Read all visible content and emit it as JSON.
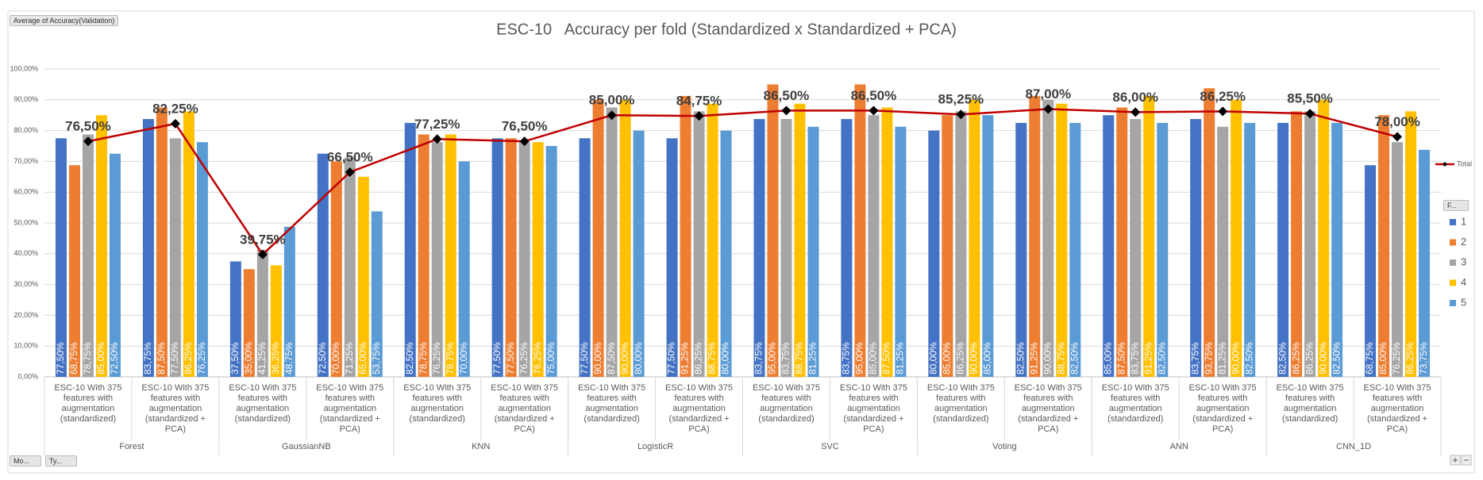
{
  "ui": {
    "field_button": "Average of Accuracy(Validation)",
    "legend_filter": "F...",
    "axis_buttons": [
      "Mo...",
      "Ty..."
    ]
  },
  "chart_data": {
    "type": "bar",
    "title": "ESC-10   Accuracy per fold (Standardized x Standardized + PCA)",
    "categories": [
      "ESC-10 With 375 features with augmentation (standardized)",
      "ESC-10 With 375 features with augmentation (standardized + PCA)",
      "ESC-10 With 375 features with augmentation (standardized)",
      "ESC-10 With 375 features with augmentation (standardized + PCA)",
      "ESC-10 With 375 features with augmentation (standardized)",
      "ESC-10 With 375 features with augmentation (standardized + PCA)",
      "ESC-10 With 375 features with augmentation (standardized)",
      "ESC-10 With 375 features with augmentation (standardized + PCA)",
      "ESC-10 With 375 features with augmentation (standardized)",
      "ESC-10 With 375 features with augmentation (standardized + PCA)",
      "ESC-10 With 375 features with augmentation (standardized)",
      "ESC-10 With 375 features with augmentation (standardized + PCA)",
      "ESC-10 With 375 features with augmentation (standardized)",
      "ESC-10 With 375 features with augmentation (standardized + PCA)",
      "ESC-10 With 375 features with augmentation (standardized)",
      "ESC-10 With 375 features with augmentation (standardized + PCA)"
    ],
    "groups": [
      "Forest",
      "GaussianNB",
      "KNN",
      "LogisticR",
      "SVC",
      "Voting",
      "ANN",
      "CNN_1D"
    ],
    "ylim": [
      0,
      100
    ],
    "yticks": [
      {
        "value": 0,
        "label": "0,00%"
      },
      {
        "value": 10,
        "label": "10,00%"
      },
      {
        "value": 20,
        "label": "20,00%"
      },
      {
        "value": 30,
        "label": "30,00%"
      },
      {
        "value": 40,
        "label": "40,00%"
      },
      {
        "value": 50,
        "label": "50,00%"
      },
      {
        "value": 60,
        "label": "60,00%"
      },
      {
        "value": 70,
        "label": "70,00%"
      },
      {
        "value": 80,
        "label": "80,00%"
      },
      {
        "value": 90,
        "label": "90,00%"
      },
      {
        "value": 100,
        "label": "100,00%"
      }
    ],
    "grid": true,
    "legend_position": "right",
    "series": [
      {
        "name": "1",
        "color": "#4472c4",
        "values": [
          77.5,
          83.75,
          37.5,
          72.5,
          82.5,
          77.5,
          77.5,
          77.5,
          83.75,
          83.75,
          80,
          82.5,
          85,
          83.75,
          82.5,
          68.75
        ],
        "value_labels": [
          "77,50%",
          "83,75%",
          "37,50%",
          "72,50%",
          "82,50%",
          "77,50%",
          "77,50%",
          "77,50%",
          "83,75%",
          "83,75%",
          "80,00%",
          "82,50%",
          "85,00%",
          "83,75%",
          "82,50%",
          "68,75%"
        ]
      },
      {
        "name": "2",
        "color": "#ed7d31",
        "values": [
          68.75,
          87.5,
          35,
          70,
          78.75,
          77.5,
          90,
          91.25,
          95,
          95,
          85,
          91.25,
          87.5,
          93.75,
          86.25,
          85
        ],
        "value_labels": [
          "68,75%",
          "87,50%",
          "35,00%",
          "70,00%",
          "78,75%",
          "77,50%",
          "90,00%",
          "91,25%",
          "95,00%",
          "95,00%",
          "85,00%",
          "91,25%",
          "87,50%",
          "93,75%",
          "86,25%",
          "85,00%"
        ]
      },
      {
        "name": "3",
        "color": "#a5a5a5",
        "values": [
          78.75,
          77.5,
          41.25,
          71.25,
          76.25,
          76.25,
          87.5,
          86.25,
          83.75,
          85,
          86.25,
          90,
          83.75,
          81.25,
          86.25,
          76.25
        ],
        "value_labels": [
          "78,75%",
          "77,50%",
          "41,25%",
          "71,25%",
          "76,25%",
          "76,25%",
          "87,50%",
          "86,25%",
          "83,75%",
          "85,00%",
          "86,25%",
          "90,00%",
          "83,75%",
          "81,25%",
          "86,25%",
          "76,25%"
        ]
      },
      {
        "name": "4",
        "color": "#ffc000",
        "values": [
          85,
          86.25,
          36.25,
          65,
          78.75,
          76.25,
          90,
          88.75,
          88.75,
          87.5,
          90,
          88.75,
          91.25,
          90,
          90,
          86.25
        ],
        "value_labels": [
          "85,00%",
          "86,25%",
          "36,25%",
          "65,00%",
          "78,75%",
          "76,25%",
          "90,00%",
          "88,75%",
          "88,75%",
          "87,50%",
          "90,00%",
          "88,75%",
          "91,25%",
          "90,00%",
          "90,00%",
          "86,25%"
        ]
      },
      {
        "name": "5",
        "color": "#5b9bd5",
        "values": [
          72.5,
          76.25,
          48.75,
          53.75,
          70,
          75,
          80,
          80,
          81.25,
          81.25,
          85,
          82.5,
          82.5,
          82.5,
          82.5,
          73.75
        ],
        "value_labels": [
          "72,50%",
          "76,25%",
          "48,75%",
          "53,75%",
          "70,00%",
          "75,00%",
          "80,00%",
          "80,00%",
          "81,25%",
          "81,25%",
          "85,00%",
          "82,50%",
          "82,50%",
          "82,50%",
          "82,50%",
          "73,75%"
        ]
      },
      {
        "name": "Total",
        "type": "line",
        "color": "#c00000",
        "values": [
          76.5,
          82.25,
          39.75,
          66.5,
          77.25,
          76.5,
          85,
          84.75,
          86.5,
          86.5,
          85.25,
          87,
          86,
          86.25,
          85.5,
          78
        ],
        "value_labels": [
          "76,50%",
          "82,25%",
          "39,75%",
          "66,50%",
          "77,25%",
          "76,50%",
          "85,00%",
          "84,75%",
          "86,50%",
          "86,50%",
          "85,25%",
          "87,00%",
          "86,00%",
          "86,25%",
          "85,50%",
          "78,00%"
        ]
      }
    ]
  }
}
